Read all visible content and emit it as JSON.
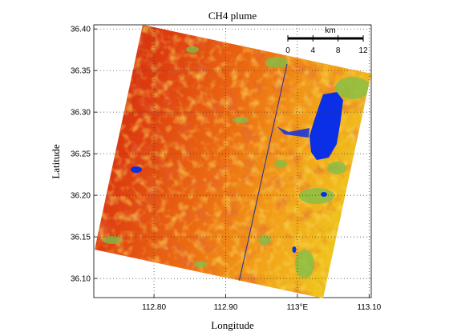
{
  "title": "CH4 plume",
  "xlabel": "Longitude",
  "ylabel": "Latitude",
  "x_ticks": [
    "112.80",
    "112.90",
    "113°E",
    "113.10"
  ],
  "x_tick_values": [
    112.8,
    112.9,
    113.0,
    113.1
  ],
  "y_ticks": [
    "36.40",
    "36.35",
    "36.30",
    "36.25",
    "36.20",
    "36.15",
    "36.10"
  ],
  "y_tick_values": [
    36.4,
    36.35,
    36.3,
    36.25,
    36.2,
    36.15,
    36.1
  ],
  "lon_range": [
    112.716,
    113.103
  ],
  "lat_range": [
    36.077,
    36.405
  ],
  "grid": true,
  "scale_bar": {
    "unit": "km",
    "labels": [
      "0",
      "4",
      "8",
      "12"
    ],
    "values_km": [
      0,
      4,
      8,
      12
    ]
  },
  "colors": {
    "high": "#d42a0c",
    "mid": "#f07a12",
    "low": "#f5d21a",
    "vegetation": "#7cc04a",
    "water": "#0a2fe6"
  }
}
